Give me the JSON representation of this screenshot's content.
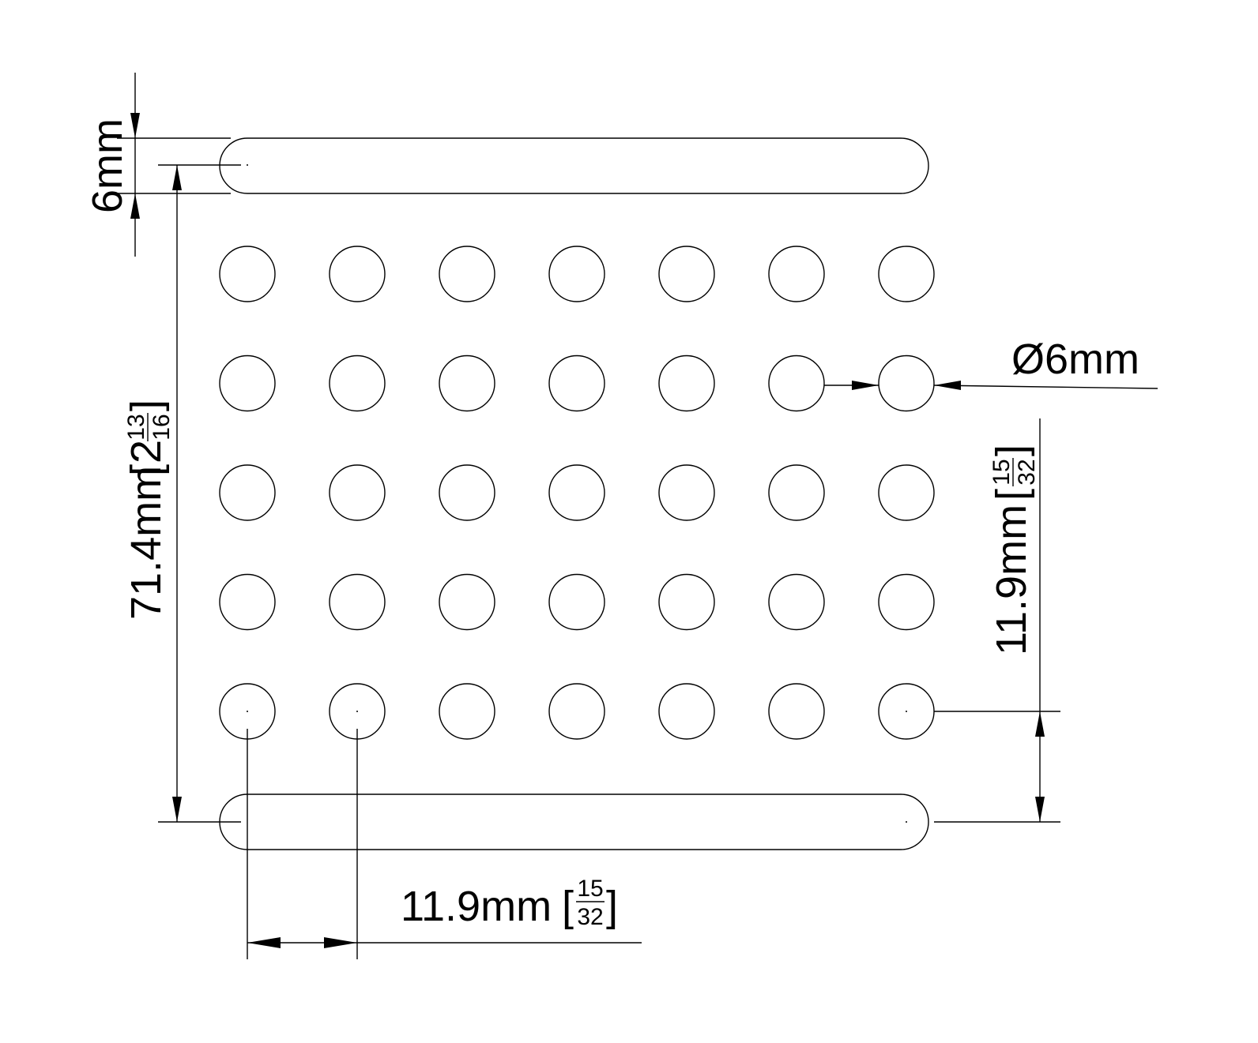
{
  "drawing": {
    "hole_grid": {
      "rows": 5,
      "columns": 7
    },
    "slots": {
      "count": 2
    },
    "dimensions": {
      "slot_width": {
        "value": "6mm"
      },
      "overall_height": {
        "value": "71.4mm",
        "bracket_open": "[",
        "whole": "2",
        "numerator": "13",
        "denominator": "16",
        "bracket_close": "]"
      },
      "hole_diameter": {
        "value": "Ø6mm"
      },
      "vertical_pitch": {
        "value": "11.9mm",
        "bracket_open": "[",
        "numerator": "15",
        "denominator": "32",
        "bracket_close": "]"
      },
      "horizontal_pitch": {
        "value": "11.9mm",
        "bracket_open": "[",
        "numerator": "15",
        "denominator": "32",
        "bracket_close": "]"
      }
    },
    "colors": {
      "line": "#000000",
      "background": "#ffffff"
    }
  }
}
